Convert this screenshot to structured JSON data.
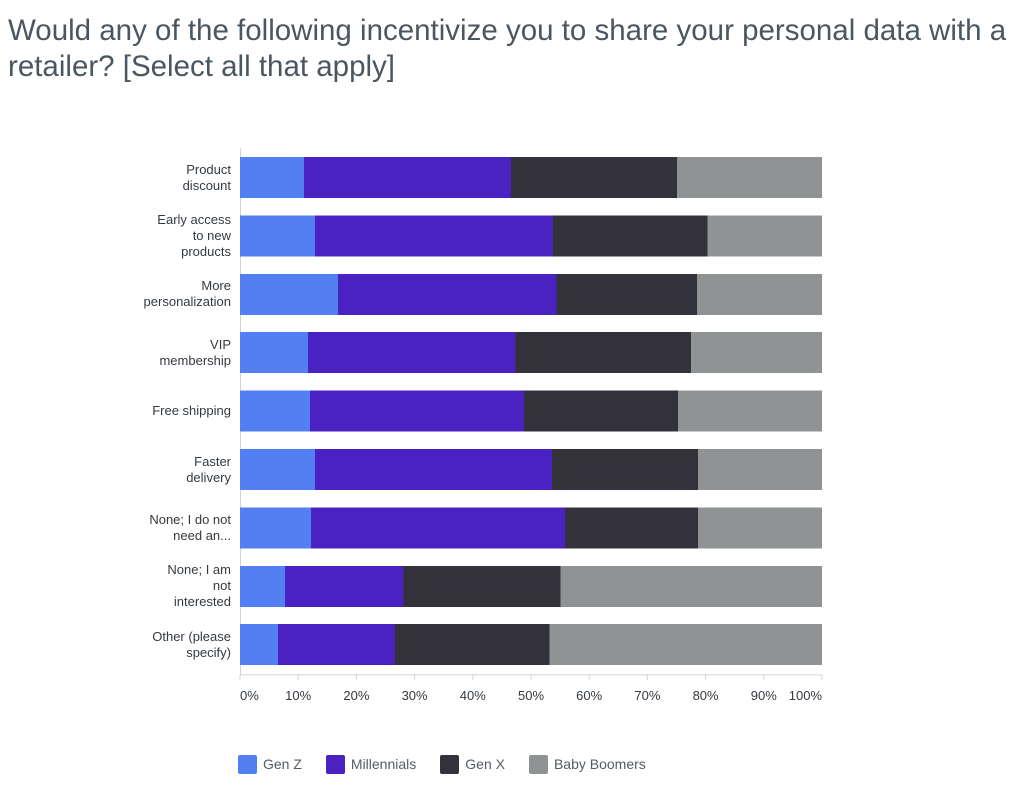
{
  "chart_data": {
    "type": "bar",
    "orientation": "horizontal",
    "stacked": "percent",
    "title": "Would any of the following incentivize you to share your personal data with a retailer? [Select all that apply]",
    "categories": [
      "Product discount",
      "Early access to new products",
      "More personalization",
      "VIP membership",
      "Free shipping",
      "Faster delivery",
      "None; I do not need an...",
      "None; I am not interested",
      "Other (please specify)"
    ],
    "series": [
      {
        "name": "Gen Z",
        "color": "#527ff1",
        "values": [
          11.0,
          12.9,
          16.8,
          11.7,
          12.0,
          12.9,
          12.2,
          7.7,
          6.5
        ]
      },
      {
        "name": "Millennials",
        "color": "#4a22c2",
        "values": [
          35.6,
          40.9,
          37.6,
          35.6,
          36.8,
          40.7,
          43.6,
          20.4,
          20.1
        ]
      },
      {
        "name": "Gen X",
        "color": "#33323a",
        "values": [
          28.5,
          26.5,
          24.1,
          30.2,
          26.5,
          25.1,
          22.9,
          27.0,
          26.6
        ]
      },
      {
        "name": "Baby Boomers",
        "color": "#909394",
        "values": [
          24.9,
          19.7,
          21.5,
          22.5,
          24.7,
          21.3,
          21.3,
          44.9,
          46.8
        ]
      }
    ],
    "xticks": [
      "0%",
      "10%",
      "20%",
      "30%",
      "40%",
      "50%",
      "60%",
      "70%",
      "80%",
      "90%",
      "100%"
    ],
    "xlim": [
      0,
      100
    ],
    "grid": false,
    "legend": "bottom"
  }
}
